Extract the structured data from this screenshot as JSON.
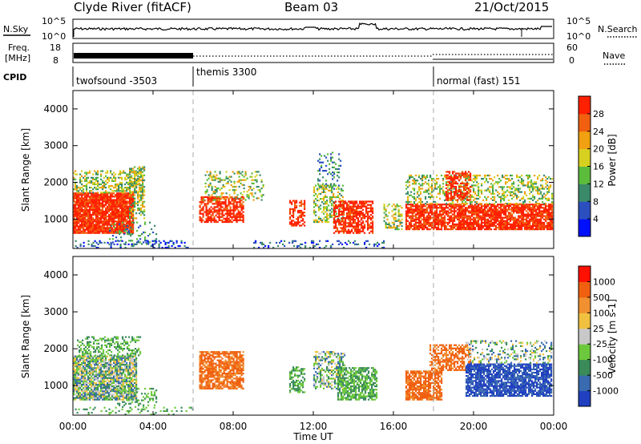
{
  "header": {
    "station": "Clyde River (fitACF)",
    "beam": "Beam 03",
    "date": "21/Oct/2015"
  },
  "noise_panel": {
    "left_label": "N.Sky",
    "right_label": "N.Search",
    "left_top": "10^5",
    "left_bottom": "10^0",
    "right_top": "10^5",
    "right_bottom": "10^0"
  },
  "freq_panel": {
    "left_label_1": "Freq.",
    "left_label_2": "[MHz]",
    "left_top": "18",
    "left_bottom": "8",
    "right_top": "60",
    "right_bottom": "0",
    "right_label": "Nave"
  },
  "cpid_panel": {
    "label": "CPID",
    "segments": [
      {
        "name": "twofsound -3503",
        "start_hour": 0
      },
      {
        "name": "themis 3300",
        "start_hour": 6
      },
      {
        "name": "normal (fast) 151",
        "start_hour": 18
      }
    ]
  },
  "chart_data": [
    {
      "type": "heatmap",
      "title": "Power",
      "ylabel": "Slant Range [km]",
      "xlabel": "Time UT",
      "xlim_hours": [
        0,
        24
      ],
      "ylim": [
        200,
        4500
      ],
      "yticks": [
        1000,
        2000,
        3000,
        4000
      ],
      "colorbar_label": "Power [dB]",
      "colorbar_ticks": [
        "4",
        "8",
        "12",
        "16",
        "20",
        "24",
        "28"
      ],
      "colorbar_colors": [
        "#0010ff",
        "#2c4fc0",
        "#3a8a6a",
        "#5cbc3c",
        "#d8d020",
        "#f0a010",
        "#f06010",
        "#ff2000"
      ]
    },
    {
      "type": "heatmap",
      "title": "Velocity",
      "ylabel": "Slant Range [km]",
      "xlabel": "Time UT",
      "xlim_hours": [
        0,
        24
      ],
      "ylim": [
        200,
        4500
      ],
      "yticks": [
        1000,
        2000,
        3000,
        4000
      ],
      "colorbar_label": "Velocity [m s-1]",
      "colorbar_ticks": [
        "1000",
        "500",
        "100",
        "25",
        "-25",
        "-100",
        "-500",
        "-1000"
      ],
      "colorbar_colors": [
        "#2040c0",
        "#3a6ab0",
        "#3a8a5a",
        "#6cc83c",
        "#c8c8c8",
        "#f0c040",
        "#f09030",
        "#f06010",
        "#ff1000"
      ]
    }
  ],
  "x_axis": {
    "ticks": [
      "00:00",
      "04:00",
      "08:00",
      "12:00",
      "16:00",
      "20:00",
      "00:00"
    ],
    "label": "Time UT"
  }
}
